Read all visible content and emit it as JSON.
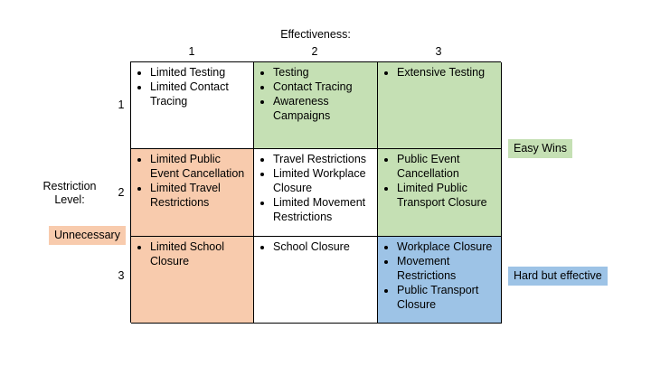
{
  "title": "Effectiveness:",
  "column_headers": [
    "1",
    "2",
    "3"
  ],
  "row_headers": [
    "1",
    "2",
    "3"
  ],
  "row_axis_label": "Restriction Level:",
  "colors": {
    "green": "#c5e0b4",
    "orange": "#f8cbad",
    "blue": "#9dc3e6",
    "white": "#ffffff"
  },
  "tags": {
    "easy": "Easy Wins",
    "unnecessary": "Unnecessary",
    "hard": "Hard but effective"
  },
  "cells": [
    [
      {
        "fill": "white",
        "items": [
          "Limited Testing",
          "Limited Contact Tracing"
        ]
      },
      {
        "fill": "green",
        "items": [
          "Testing",
          "Contact Tracing",
          "Awareness Campaigns"
        ]
      },
      {
        "fill": "green",
        "items": [
          "Extensive Testing"
        ]
      }
    ],
    [
      {
        "fill": "orange",
        "items": [
          "Limited Public Event Cancellation",
          "Limited Travel Restrictions"
        ]
      },
      {
        "fill": "white",
        "items": [
          "Travel Restrictions",
          "Limited Workplace Closure",
          "Limited Movement Restrictions"
        ]
      },
      {
        "fill": "green",
        "items": [
          "Public Event Cancellation",
          "Limited Public Transport Closure"
        ]
      }
    ],
    [
      {
        "fill": "orange",
        "items": [
          "Limited School Closure"
        ]
      },
      {
        "fill": "white",
        "items": [
          "School Closure"
        ]
      },
      {
        "fill": "blue",
        "items": [
          "Workplace Closure",
          "Movement Restrictions",
          "Public Transport Closure"
        ]
      }
    ]
  ]
}
